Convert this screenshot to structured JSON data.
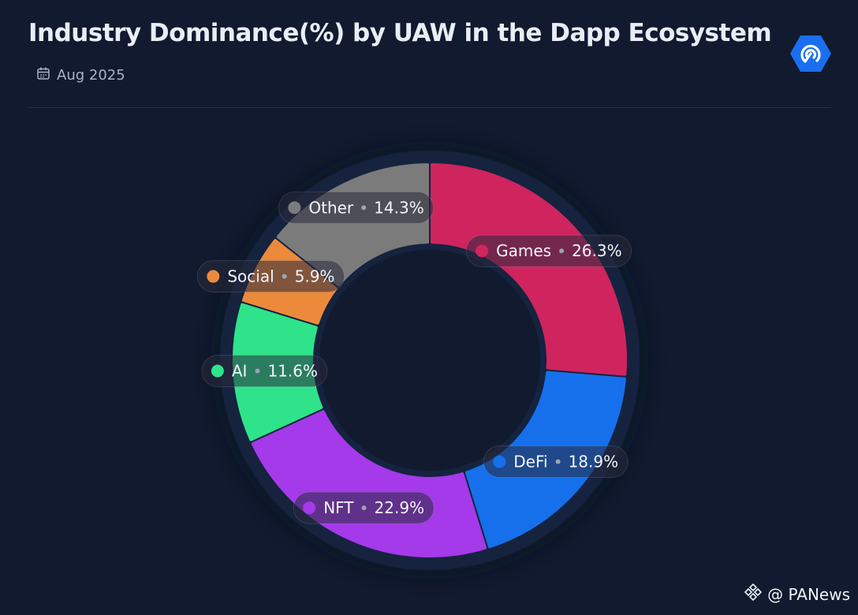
{
  "header": {
    "title": "Industry Dominance(%) by UAW in the Dapp Ecosystem",
    "date": "Aug 2025"
  },
  "footer": {
    "source": "@ PANews"
  },
  "icons": {
    "calendar": "calendar-icon",
    "brand": "dappradar-logo-icon",
    "footer": "binance-square-icon"
  },
  "colors": {
    "background": "#111a2e",
    "ring_background": "#15233f"
  },
  "chart_data": {
    "type": "pie",
    "variant": "donut",
    "categories": [
      "Games",
      "DeFi",
      "NFT",
      "AI",
      "Social",
      "Other"
    ],
    "values": [
      26.3,
      18.9,
      22.9,
      11.6,
      5.9,
      14.3
    ],
    "labels": [
      "26.3%",
      "18.9%",
      "22.9%",
      "11.6%",
      "5.9%",
      "14.3%"
    ],
    "colors": [
      "#d0245f",
      "#1670ec",
      "#a43ae9",
      "#2fe38b",
      "#ec8a3c",
      "#7b7b7b"
    ],
    "legend": "inline-labels"
  }
}
